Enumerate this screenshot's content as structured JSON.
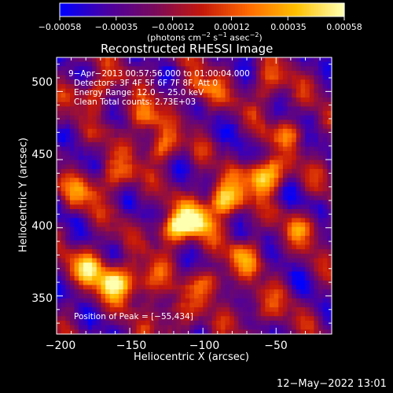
{
  "chart_data": {
    "type": "heatmap",
    "title": "Reconstructed RHESSI Image",
    "xlabel": "Heliocentric X (arcsec)",
    "ylabel": "Heliocentric Y (arcsec)",
    "xlim": [
      -200,
      -12
    ],
    "ylim": [
      322,
      525
    ],
    "xticks": [
      -200,
      -150,
      -100,
      -50
    ],
    "xtick_labels": [
      "−200",
      "−150",
      "−100",
      "−50"
    ],
    "yticks": [
      350,
      400,
      450,
      500
    ],
    "ytick_labels": [
      "350",
      "400",
      "450",
      "500"
    ],
    "colorbar": {
      "min": -0.00058,
      "max": 0.00058,
      "ticks": [
        -0.00058,
        -0.00035,
        -0.00012,
        0.00012,
        0.00035,
        0.00058
      ],
      "tick_labels": [
        "−0.00058",
        "−0.00035",
        "−0.00012",
        "0.00012",
        "0.00035",
        "0.00058"
      ],
      "units_text": "(photons cm",
      "units_exp1": "−2",
      "units_mid": " s",
      "units_exp2": "−1",
      "units_end": " asec",
      "units_exp3": "−2",
      "units_close": ")",
      "colors": [
        "#0000ff",
        "#4b00a0",
        "#7a0a5a",
        "#c4180a",
        "#ff6a00",
        "#ffc000",
        "#ffffb0"
      ]
    },
    "annotations": {
      "time_range": "9−Apr−2013 00:57:56.000 to 01:00:04.000",
      "detectors": "Detectors: 3F 4F 5F 6F 7F 8F, Att 0",
      "energy": "Energy Range: 12.0 − 25.0 keV",
      "clean": "Clean    Total counts: 2.73E+03",
      "peak": "Position of Peak = [−55,434]"
    },
    "peak": {
      "x": -55,
      "y": 434
    },
    "sources": [
      {
        "x": -86,
        "y": 420,
        "a": 0.95
      },
      {
        "x": -58,
        "y": 438,
        "a": 1.0
      },
      {
        "x": -105,
        "y": 405,
        "a": 0.9
      },
      {
        "x": -120,
        "y": 398,
        "a": 0.75
      },
      {
        "x": -160,
        "y": 360,
        "a": 0.9
      },
      {
        "x": -178,
        "y": 372,
        "a": 0.7
      },
      {
        "x": -140,
        "y": 360,
        "a": 0.6
      },
      {
        "x": -95,
        "y": 360,
        "a": 0.55
      },
      {
        "x": -70,
        "y": 378,
        "a": 0.5
      },
      {
        "x": -128,
        "y": 460,
        "a": 0.55
      },
      {
        "x": -140,
        "y": 482,
        "a": 0.55
      },
      {
        "x": -100,
        "y": 500,
        "a": 0.5
      },
      {
        "x": -160,
        "y": 438,
        "a": 0.55
      },
      {
        "x": -185,
        "y": 425,
        "a": 0.45
      },
      {
        "x": -40,
        "y": 470,
        "a": 0.4
      },
      {
        "x": -30,
        "y": 400,
        "a": 0.45
      },
      {
        "x": -175,
        "y": 500,
        "a": 0.5
      },
      {
        "x": -55,
        "y": 505,
        "a": 0.4
      },
      {
        "x": -120,
        "y": 335,
        "a": 0.45
      },
      {
        "x": -60,
        "y": 340,
        "a": 0.35
      }
    ]
  },
  "timestamp": "12−May−2022 13:01"
}
